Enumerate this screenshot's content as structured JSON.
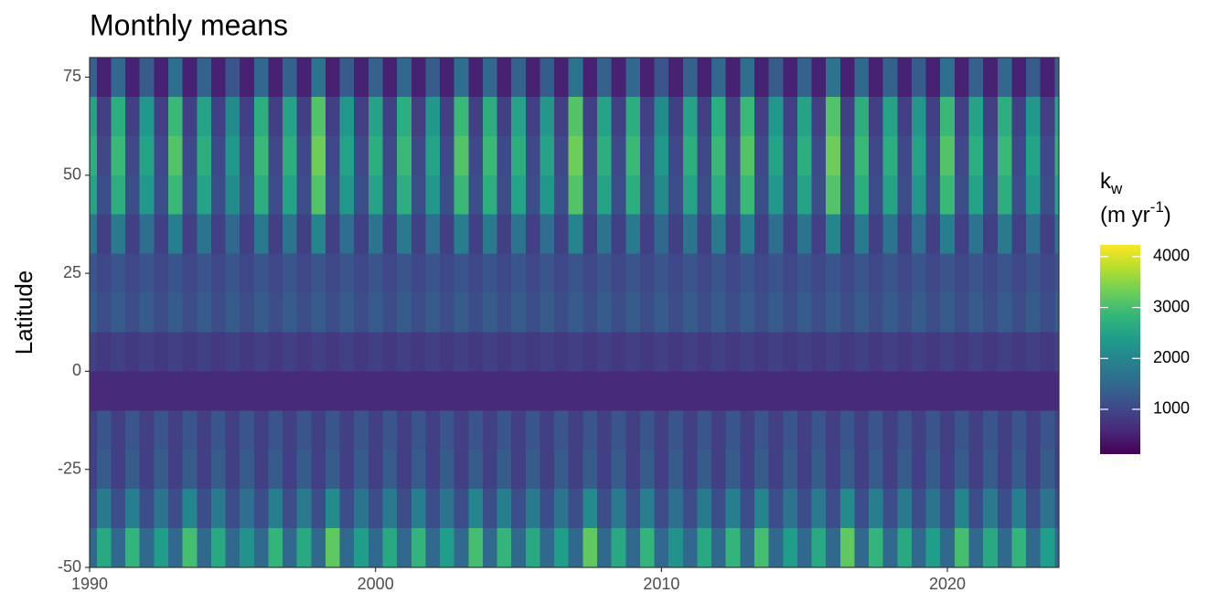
{
  "chart_data": {
    "type": "heatmap",
    "title": "Monthly means",
    "y_label": "Latitude",
    "legend_title": {
      "symbol": "k",
      "subscript": "w",
      "unit": "(m yr",
      "superscript": "-1",
      "unit_end": ")"
    },
    "xlim": [
      1990,
      2023.9
    ],
    "xticks": [
      1990,
      2000,
      2010,
      2020
    ],
    "ylim": [
      -50,
      80
    ],
    "yticks": [
      -50,
      -25,
      0,
      25,
      50,
      75
    ],
    "clim": [
      120,
      4230
    ],
    "cticks": [
      1000,
      2000,
      3000,
      4000
    ],
    "colorscale": [
      "#440154",
      "#482878",
      "#3e4a89",
      "#31688e",
      "#26828e",
      "#1f9e89",
      "#35b779",
      "#6ece58",
      "#b5de2b",
      "#fde725"
    ],
    "xbins": [
      1990,
      1990.25,
      1990.75,
      1991.25,
      1991.75,
      1992.25,
      1992.75,
      1993.25,
      1993.75,
      1994.25,
      1994.75,
      1995.25,
      1995.75,
      1996.25,
      1996.75,
      1997.25,
      1997.75,
      1998.25,
      1998.75,
      1999.25,
      1999.75,
      2000.25,
      2000.75,
      2001.25,
      2001.75,
      2002.25,
      2002.75,
      2003.25,
      2003.75,
      2004.25,
      2004.75,
      2005.25,
      2005.75,
      2006.25,
      2006.75,
      2007.25,
      2007.75,
      2008.25,
      2008.75,
      2009.25,
      2009.75,
      2010.25,
      2010.75,
      2011.25,
      2011.75,
      2012.25,
      2012.75,
      2013.25,
      2013.75,
      2014.25,
      2014.75,
      2015.25,
      2015.75,
      2016.25,
      2016.75,
      2017.25,
      2017.75,
      2018.25,
      2018.75,
      2019.25,
      2019.75,
      2020.25,
      2020.75,
      2021.25,
      2021.75,
      2022.25,
      2022.75,
      2023.25,
      2023.75,
      2024
    ],
    "ybins": [
      80,
      70,
      60,
      50,
      40,
      30,
      20,
      10,
      0,
      -10,
      -20,
      -30,
      -40,
      -50
    ],
    "values": [
      [
        1400,
        500,
        1500,
        500,
        1300,
        500,
        1600,
        500,
        1400,
        500,
        1200,
        500,
        1500,
        500,
        1400,
        500,
        1700,
        500,
        1300,
        500,
        1400,
        500,
        1500,
        500,
        1300,
        500,
        1600,
        500,
        1500,
        500,
        1400,
        500,
        1300,
        500,
        1700,
        500,
        1400,
        500,
        1500,
        500,
        1200,
        500,
        1400,
        500,
        1500,
        500,
        1600,
        500,
        1300,
        500,
        1400,
        500,
        1700,
        500,
        1500,
        500,
        1400,
        500,
        1300,
        500,
        1600,
        500,
        1400,
        500,
        1500,
        500,
        1300,
        500,
        1400
      ],
      [
        2500,
        900,
        2700,
        900,
        2300,
        900,
        2900,
        900,
        2500,
        900,
        2100,
        900,
        2700,
        900,
        2500,
        900,
        3100,
        900,
        2300,
        900,
        2500,
        900,
        2700,
        900,
        2300,
        900,
        2900,
        900,
        2700,
        900,
        2500,
        900,
        2300,
        900,
        3100,
        900,
        2500,
        900,
        2700,
        900,
        2100,
        900,
        2500,
        900,
        2700,
        900,
        2900,
        900,
        2300,
        900,
        2500,
        900,
        3100,
        900,
        2700,
        900,
        2500,
        900,
        2300,
        900,
        2900,
        900,
        2500,
        900,
        2700,
        900,
        2300,
        900,
        2500
      ],
      [
        2700,
        1000,
        2900,
        1000,
        2500,
        1000,
        3100,
        1000,
        2700,
        1000,
        2300,
        1000,
        2900,
        1000,
        2700,
        1000,
        3300,
        1000,
        2500,
        1000,
        2700,
        1000,
        2900,
        1000,
        2500,
        1000,
        3100,
        1000,
        2900,
        1000,
        2700,
        1000,
        2500,
        1000,
        3300,
        1000,
        2700,
        1000,
        2900,
        1000,
        2300,
        1000,
        2700,
        1000,
        2900,
        1000,
        3100,
        1000,
        2500,
        1000,
        2700,
        1000,
        3300,
        1000,
        2900,
        1000,
        2700,
        1000,
        2500,
        1000,
        3100,
        1000,
        2700,
        1000,
        2900,
        1000,
        2500,
        1000,
        2700
      ],
      [
        2500,
        1100,
        2700,
        1100,
        2300,
        1100,
        2900,
        1100,
        2500,
        1100,
        2100,
        1100,
        2700,
        1100,
        2500,
        1100,
        3100,
        1100,
        2300,
        1100,
        2500,
        1100,
        2700,
        1100,
        2300,
        1100,
        2900,
        1100,
        2700,
        1100,
        2500,
        1100,
        2300,
        1100,
        3100,
        1100,
        2500,
        1100,
        2700,
        1100,
        2100,
        1100,
        2500,
        1100,
        2700,
        1100,
        2900,
        1100,
        2300,
        1100,
        2500,
        1100,
        3100,
        1100,
        2700,
        1100,
        2500,
        1100,
        2300,
        1100,
        2900,
        1100,
        2500,
        1100,
        2700,
        1100,
        2300,
        1100,
        2500
      ],
      [
        1700,
        900,
        1800,
        900,
        1600,
        900,
        1900,
        900,
        1700,
        900,
        1500,
        900,
        1800,
        900,
        1700,
        900,
        2000,
        900,
        1600,
        900,
        1700,
        900,
        1800,
        900,
        1600,
        900,
        1900,
        900,
        1800,
        900,
        1700,
        900,
        1600,
        900,
        2000,
        900,
        1700,
        900,
        1800,
        900,
        1500,
        900,
        1700,
        900,
        1800,
        900,
        1900,
        900,
        1600,
        900,
        1700,
        900,
        2000,
        900,
        1800,
        900,
        1700,
        900,
        1600,
        900,
        1900,
        900,
        1700,
        900,
        1800,
        900,
        1600,
        900,
        1700
      ],
      [
        1200,
        1000,
        1200,
        1000,
        1200,
        1000,
        1200,
        1000,
        1200,
        1000,
        1200,
        1000,
        1200,
        1000,
        1200,
        1000,
        1200,
        1000,
        1200,
        1000,
        1200,
        1000,
        1200,
        1000,
        1200,
        1000,
        1200,
        1000,
        1200,
        1000,
        1200,
        1000,
        1200,
        1000,
        1200,
        1000,
        1200,
        1000,
        1200,
        1000,
        1200,
        1000,
        1200,
        1000,
        1200,
        1000,
        1200,
        1000,
        1200,
        1000,
        1200,
        1000,
        1200,
        1000,
        1200,
        1000,
        1200,
        1000,
        1200,
        1000,
        1200,
        1000,
        1200,
        1000,
        1200,
        1000,
        1200,
        1000,
        1200
      ],
      [
        1300,
        1100,
        1300,
        1100,
        1300,
        1100,
        1300,
        1100,
        1300,
        1100,
        1300,
        1100,
        1300,
        1100,
        1300,
        1100,
        1300,
        1100,
        1300,
        1100,
        1300,
        1100,
        1300,
        1100,
        1300,
        1100,
        1300,
        1100,
        1300,
        1100,
        1300,
        1100,
        1300,
        1100,
        1300,
        1100,
        1300,
        1100,
        1300,
        1100,
        1300,
        1100,
        1300,
        1100,
        1300,
        1100,
        1300,
        1100,
        1300,
        1100,
        1300,
        1100,
        1300,
        1100,
        1300,
        1100,
        1300,
        1100,
        1300,
        1100,
        1300,
        1100,
        1300,
        1100,
        1300,
        1100,
        1300,
        1100,
        1300
      ],
      [
        900,
        800,
        900,
        800,
        900,
        800,
        900,
        800,
        900,
        800,
        900,
        800,
        900,
        800,
        900,
        800,
        900,
        800,
        900,
        800,
        900,
        800,
        900,
        800,
        900,
        800,
        900,
        800,
        900,
        800,
        900,
        800,
        900,
        800,
        900,
        800,
        900,
        800,
        900,
        800,
        900,
        800,
        900,
        800,
        900,
        800,
        900,
        800,
        900,
        800,
        900,
        800,
        900,
        800,
        900,
        800,
        900,
        800,
        900,
        800,
        900,
        800,
        900,
        800,
        900,
        800,
        900,
        800,
        900
      ],
      [
        600,
        600,
        600,
        600,
        600,
        600,
        600,
        600,
        600,
        600,
        600,
        600,
        600,
        600,
        600,
        600,
        600,
        600,
        600,
        600,
        600,
        600,
        600,
        600,
        600,
        600,
        600,
        600,
        600,
        600,
        600,
        600,
        600,
        600,
        600,
        600,
        600,
        600,
        600,
        600,
        600,
        600,
        600,
        600,
        600,
        600,
        600,
        600,
        600,
        600,
        600,
        600,
        600,
        600,
        600,
        600,
        600,
        600,
        600,
        600,
        600,
        600,
        600,
        600,
        600,
        600,
        600,
        600,
        600
      ],
      [
        900,
        1200,
        900,
        1200,
        900,
        1200,
        900,
        1200,
        900,
        1200,
        900,
        1200,
        900,
        1200,
        900,
        1200,
        900,
        1200,
        900,
        1200,
        900,
        1200,
        900,
        1200,
        900,
        1200,
        900,
        1200,
        900,
        1200,
        900,
        1200,
        900,
        1200,
        900,
        1200,
        900,
        1200,
        900,
        1200,
        900,
        1200,
        900,
        1200,
        900,
        1200,
        900,
        1200,
        900,
        1200,
        900,
        1200,
        900,
        1200,
        900,
        1200,
        900,
        1200,
        900,
        1200,
        900,
        1200,
        900,
        1200,
        900,
        1200,
        900,
        1200,
        900
      ],
      [
        900,
        1300,
        900,
        1300,
        900,
        1300,
        900,
        1300,
        900,
        1300,
        900,
        1300,
        900,
        1300,
        900,
        1300,
        900,
        1300,
        900,
        1300,
        900,
        1300,
        900,
        1300,
        900,
        1300,
        900,
        1300,
        900,
        1300,
        900,
        1300,
        900,
        1300,
        900,
        1300,
        900,
        1300,
        900,
        1300,
        900,
        1300,
        900,
        1300,
        900,
        1300,
        900,
        1300,
        900,
        1300,
        900,
        1300,
        900,
        1300,
        900,
        1300,
        900,
        1300,
        900,
        1300,
        900,
        1300,
        900,
        1300,
        900,
        1300,
        900,
        1300,
        900
      ],
      [
        1100,
        1800,
        1100,
        1900,
        1100,
        1700,
        1100,
        2000,
        1100,
        1800,
        1100,
        1600,
        1100,
        1900,
        1100,
        1800,
        1100,
        2100,
        1100,
        1700,
        1100,
        1800,
        1100,
        1900,
        1100,
        1700,
        1100,
        2000,
        1100,
        1900,
        1100,
        1800,
        1100,
        1700,
        1100,
        2100,
        1100,
        1800,
        1100,
        1900,
        1100,
        1600,
        1100,
        1800,
        1100,
        1900,
        1100,
        2000,
        1100,
        1700,
        1100,
        1800,
        1100,
        2100,
        1100,
        1900,
        1100,
        1800,
        1100,
        1700,
        1100,
        2000,
        1100,
        1800,
        1100,
        1900,
        1100,
        1700,
        1100
      ],
      [
        1500,
        2600,
        1500,
        2800,
        1500,
        2400,
        1500,
        3000,
        1500,
        2600,
        1500,
        2200,
        1500,
        2800,
        1500,
        2600,
        1500,
        3200,
        1500,
        2400,
        1500,
        2600,
        1500,
        2800,
        1500,
        2400,
        1500,
        3000,
        1500,
        2800,
        1500,
        2600,
        1500,
        2400,
        1500,
        3200,
        1500,
        2600,
        1500,
        2800,
        1500,
        2200,
        1500,
        2600,
        1500,
        2800,
        1500,
        3000,
        1500,
        2400,
        1500,
        2600,
        1500,
        3200,
        1500,
        2800,
        1500,
        2600,
        1500,
        2400,
        1500,
        3000,
        1500,
        2600,
        1500,
        2800,
        1500,
        2400,
        1500
      ]
    ]
  }
}
